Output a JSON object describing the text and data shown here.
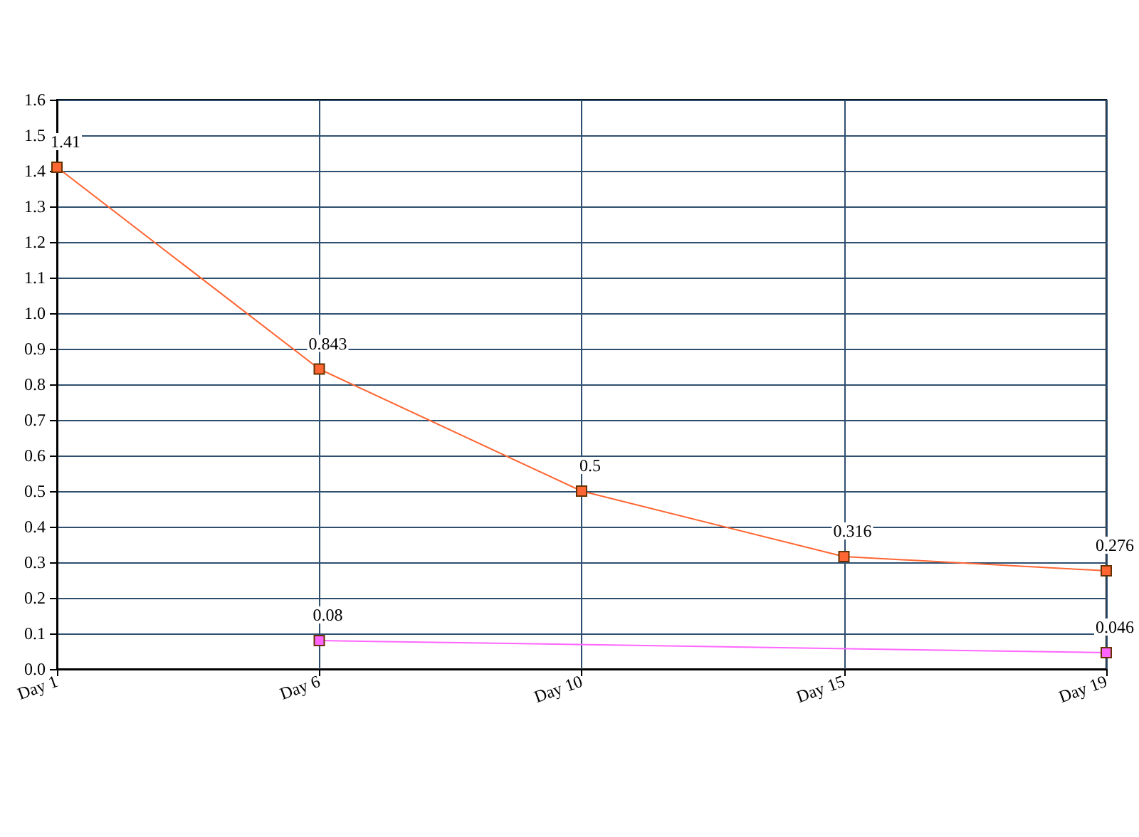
{
  "chart_data": {
    "type": "line",
    "categories": [
      "Day 1",
      "Day 6",
      "Day 10",
      "Day 15",
      "Day 19"
    ],
    "ylim": [
      0,
      1.6
    ],
    "yticks": [
      {
        "value": 0,
        "label": "0.0"
      },
      {
        "value": 0.1,
        "label": "0.1"
      },
      {
        "value": 0.2,
        "label": "0.2"
      },
      {
        "value": 0.3,
        "label": "0.3"
      },
      {
        "value": 0.4,
        "label": "0.4"
      },
      {
        "value": 0.5,
        "label": "0.5"
      },
      {
        "value": 0.6,
        "label": "0.6"
      },
      {
        "value": 0.7,
        "label": "0.7"
      },
      {
        "value": 0.8,
        "label": "0.8"
      },
      {
        "value": 0.9,
        "label": "0.9"
      },
      {
        "value": 1.0,
        "label": "1.0"
      },
      {
        "value": 1.1,
        "label": "1.1"
      },
      {
        "value": 1.2,
        "label": "1.2"
      },
      {
        "value": 1.3,
        "label": "1.3"
      },
      {
        "value": 1.4,
        "label": "1.4"
      },
      {
        "value": 1.5,
        "label": "1.5"
      },
      {
        "value": 1.6,
        "label": "1.6"
      }
    ],
    "series": [
      {
        "color": "#ff6633",
        "values": [
          1.41,
          0.843,
          0.5,
          0.316,
          0.276
        ]
      },
      {
        "color": "#ff66ff",
        "values": [
          null,
          0.08,
          null,
          null,
          0.046
        ]
      }
    ],
    "data_labels": true,
    "grid": true,
    "marker": "square",
    "line_style": "solid"
  }
}
